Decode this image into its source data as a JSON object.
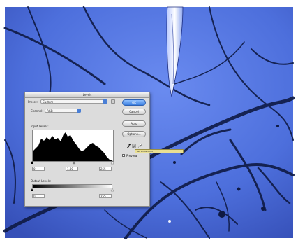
{
  "dialog": {
    "title": "Levels",
    "preset": {
      "label": "Preset:",
      "value": "Custom"
    },
    "channel": {
      "label": "Channel:",
      "value": "RGB"
    },
    "input_levels_label": "Input Levels:",
    "input_values": [
      "0",
      "1.00",
      "255"
    ],
    "output_levels_label": "Output Levels:",
    "output_values": [
      "0",
      "255"
    ],
    "buttons": {
      "ok": "OK",
      "cancel": "Cancel",
      "auto": "Auto",
      "options": "Options..."
    },
    "preview_label": "Preview",
    "tooltip": "Set White Point"
  },
  "colors": {
    "sky": "#4f73e0",
    "branch": "#0f1a44",
    "ok_button": "#3b7fe0",
    "tooltip": "#e9df93"
  },
  "icons": [
    "eyedropper-black-icon",
    "eyedropper-gray-icon",
    "eyedropper-white-icon",
    "menu-icon",
    "preview-checkbox"
  ]
}
